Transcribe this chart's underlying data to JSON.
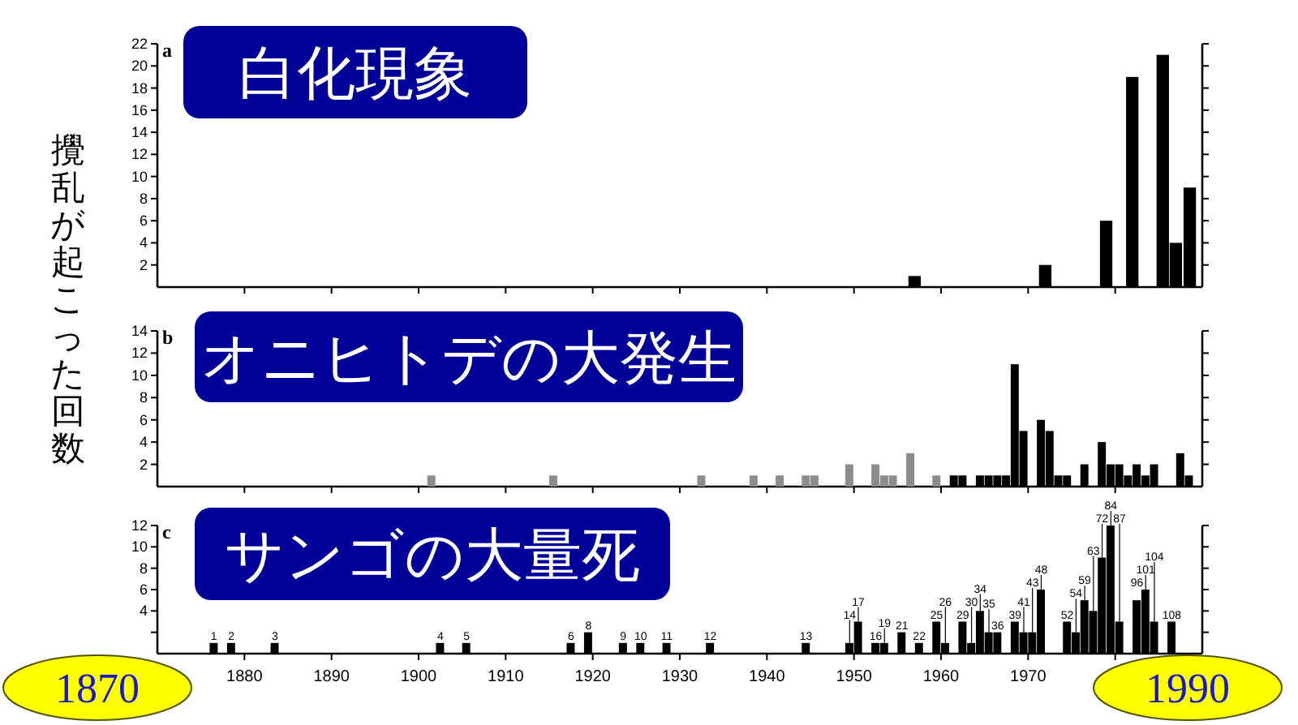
{
  "chart_data": [
    {
      "type": "bar",
      "title": "白化現象",
      "annotations": [
        "a"
      ],
      "tick_labels": "y",
      "color": "#000000",
      "x": [
        1957,
        1972,
        1979,
        1982,
        1985.5,
        1987,
        1988.6
      ],
      "values": [
        1,
        2,
        6,
        19,
        21,
        4,
        9
      ],
      "xlim": [
        1870,
        1990
      ],
      "xticks": [
        {
          "value": 1880,
          "label": null
        },
        {
          "value": 1890,
          "label": null
        },
        {
          "value": 1900,
          "label": null
        },
        {
          "value": 1910,
          "label": null
        },
        {
          "value": 1920,
          "label": null
        },
        {
          "value": 1930,
          "label": null
        },
        {
          "value": 1940,
          "label": null
        },
        {
          "value": 1950,
          "label": null
        },
        {
          "value": 1960,
          "label": null
        },
        {
          "value": 1970,
          "label": null
        },
        {
          "value": 1980,
          "label": null
        }
      ],
      "ylim": [
        0,
        22
      ],
      "yticks": [
        2,
        4,
        6,
        8,
        10,
        12,
        14,
        16,
        18,
        20,
        22
      ]
    },
    {
      "type": "bar",
      "title": "オニヒトデの大発生",
      "ylabel": "攪乱が起こった回数",
      "annotations": [
        "b"
      ],
      "tick_labels": "y",
      "x": [
        1901,
        1915,
        1932,
        1938,
        1941,
        1944,
        1945,
        1949,
        1952,
        1953,
        1954,
        1956,
        1959,
        1961,
        1962,
        1964,
        1965,
        1966,
        1967,
        1968,
        1969,
        1971,
        1972,
        1973,
        1974,
        1976,
        1978,
        1979,
        1980,
        1981,
        1982,
        1983,
        1984,
        1987,
        1988
      ],
      "values": [
        1,
        1,
        1,
        1,
        1,
        1,
        1,
        2,
        2,
        1,
        1,
        3,
        1,
        1,
        1,
        1,
        1,
        1,
        1,
        11,
        5,
        6,
        5,
        1,
        1,
        2,
        4,
        2,
        2,
        1,
        2,
        1,
        2,
        3,
        1
      ],
      "colors": [
        "#8c8c8c",
        "#8c8c8c",
        "#8c8c8c",
        "#8c8c8c",
        "#8c8c8c",
        "#8c8c8c",
        "#8c8c8c",
        "#8c8c8c",
        "#8c8c8c",
        "#8c8c8c",
        "#8c8c8c",
        "#8c8c8c",
        "#8c8c8c",
        "#000000",
        "#000000",
        "#000000",
        "#000000",
        "#000000",
        "#000000",
        "#000000",
        "#000000",
        "#000000",
        "#000000",
        "#000000",
        "#000000",
        "#000000",
        "#000000",
        "#000000",
        "#000000",
        "#000000",
        "#000000",
        "#000000",
        "#000000",
        "#000000",
        "#000000"
      ],
      "xlim": [
        1870,
        1990
      ],
      "xticks": [
        {
          "value": 1880,
          "label": null
        },
        {
          "value": 1890,
          "label": null
        },
        {
          "value": 1900,
          "label": null
        },
        {
          "value": 1910,
          "label": null
        },
        {
          "value": 1920,
          "label": null
        },
        {
          "value": 1930,
          "label": null
        },
        {
          "value": 1940,
          "label": null
        },
        {
          "value": 1950,
          "label": null
        },
        {
          "value": 1960,
          "label": null
        },
        {
          "value": 1970,
          "label": null
        },
        {
          "value": 1980,
          "label": null
        }
      ],
      "ylim": [
        0,
        14
      ],
      "yticks": [
        2,
        4,
        6,
        8,
        10,
        12,
        14
      ]
    },
    {
      "type": "bar",
      "title": "サンゴの大量死",
      "color": "#000000",
      "annotations": [
        "c",
        "1870",
        "1990",
        {
          "text": "1",
          "x": 1876,
          "y": 1
        },
        {
          "text": "2",
          "x": 1878,
          "y": 1
        },
        {
          "text": "3",
          "x": 1883,
          "y": 1
        },
        {
          "text": "4",
          "x": 1902,
          "y": 1
        },
        {
          "text": "5",
          "x": 1905,
          "y": 1
        },
        {
          "text": "6",
          "x": 1917,
          "y": 1
        },
        {
          "text": "8",
          "x": 1919,
          "y": 2
        },
        {
          "text": "9",
          "x": 1923,
          "y": 1
        },
        {
          "text": "10",
          "x": 1925,
          "y": 1
        },
        {
          "text": "11",
          "x": 1928,
          "y": 1
        },
        {
          "text": "12",
          "x": 1933,
          "y": 1
        },
        {
          "text": "13",
          "x": 1944,
          "y": 1
        },
        {
          "text": "14",
          "x": 1949,
          "y": 1
        },
        {
          "text": "17",
          "x": 1950,
          "y": 3
        },
        {
          "text": "16",
          "x": 1952,
          "y": 1
        },
        {
          "text": "19",
          "x": 1953,
          "y": 1
        },
        {
          "text": "21",
          "x": 1955,
          "y": 2
        },
        {
          "text": "22",
          "x": 1957,
          "y": 1
        },
        {
          "text": "25",
          "x": 1959,
          "y": 3
        },
        {
          "text": "26",
          "x": 1960,
          "y": 1
        },
        {
          "text": "29",
          "x": 1962,
          "y": 3
        },
        {
          "text": "30",
          "x": 1963,
          "y": 1
        },
        {
          "text": "34",
          "x": 1964,
          "y": 4
        },
        {
          "text": "35",
          "x": 1965,
          "y": 2
        },
        {
          "text": "36",
          "x": 1966,
          "y": 2
        },
        {
          "text": "39",
          "x": 1968,
          "y": 3
        },
        {
          "text": "41",
          "x": 1969,
          "y": 2
        },
        {
          "text": "43",
          "x": 1970,
          "y": 2
        },
        {
          "text": "48",
          "x": 1971,
          "y": 6
        },
        {
          "text": "52",
          "x": 1974,
          "y": 3
        },
        {
          "text": "54",
          "x": 1975,
          "y": 2
        },
        {
          "text": "59",
          "x": 1976,
          "y": 5
        },
        {
          "text": "63",
          "x": 1977,
          "y": 4
        },
        {
          "text": "72",
          "x": 1978,
          "y": 9
        },
        {
          "text": "84",
          "x": 1979,
          "y": 12
        },
        {
          "text": "87",
          "x": 1980,
          "y": 3
        },
        {
          "text": "96",
          "x": 1982,
          "y": 5
        },
        {
          "text": "101",
          "x": 1983,
          "y": 6
        },
        {
          "text": "104",
          "x": 1984,
          "y": 3
        },
        {
          "text": "108",
          "x": 1986,
          "y": 3
        }
      ],
      "x": [
        1876,
        1878,
        1883,
        1902,
        1905,
        1917,
        1919,
        1923,
        1925,
        1928,
        1933,
        1944,
        1949,
        1950,
        1952,
        1953,
        1955,
        1957,
        1959,
        1960,
        1962,
        1963,
        1964,
        1965,
        1966,
        1968,
        1969,
        1970,
        1971,
        1974,
        1975,
        1976,
        1977,
        1978,
        1979,
        1980,
        1982,
        1983,
        1984,
        1986
      ],
      "values": [
        1,
        1,
        1,
        1,
        1,
        1,
        2,
        1,
        1,
        1,
        1,
        1,
        1,
        3,
        1,
        1,
        2,
        1,
        3,
        1,
        3,
        1,
        4,
        2,
        2,
        3,
        2,
        2,
        6,
        3,
        2,
        5,
        4,
        9,
        12,
        3,
        5,
        6,
        3,
        3
      ],
      "xlim": [
        1870,
        1990
      ],
      "xticks": [
        1880,
        1890,
        1900,
        1910,
        1920,
        1930,
        1940,
        1950,
        1960,
        1970,
        {
          "value": 1980,
          "label": null
        }
      ],
      "ylim": [
        0,
        12
      ],
      "yticks": [
        {
          "value": 2,
          "label": null
        },
        4,
        6,
        8,
        10,
        12
      ]
    }
  ]
}
